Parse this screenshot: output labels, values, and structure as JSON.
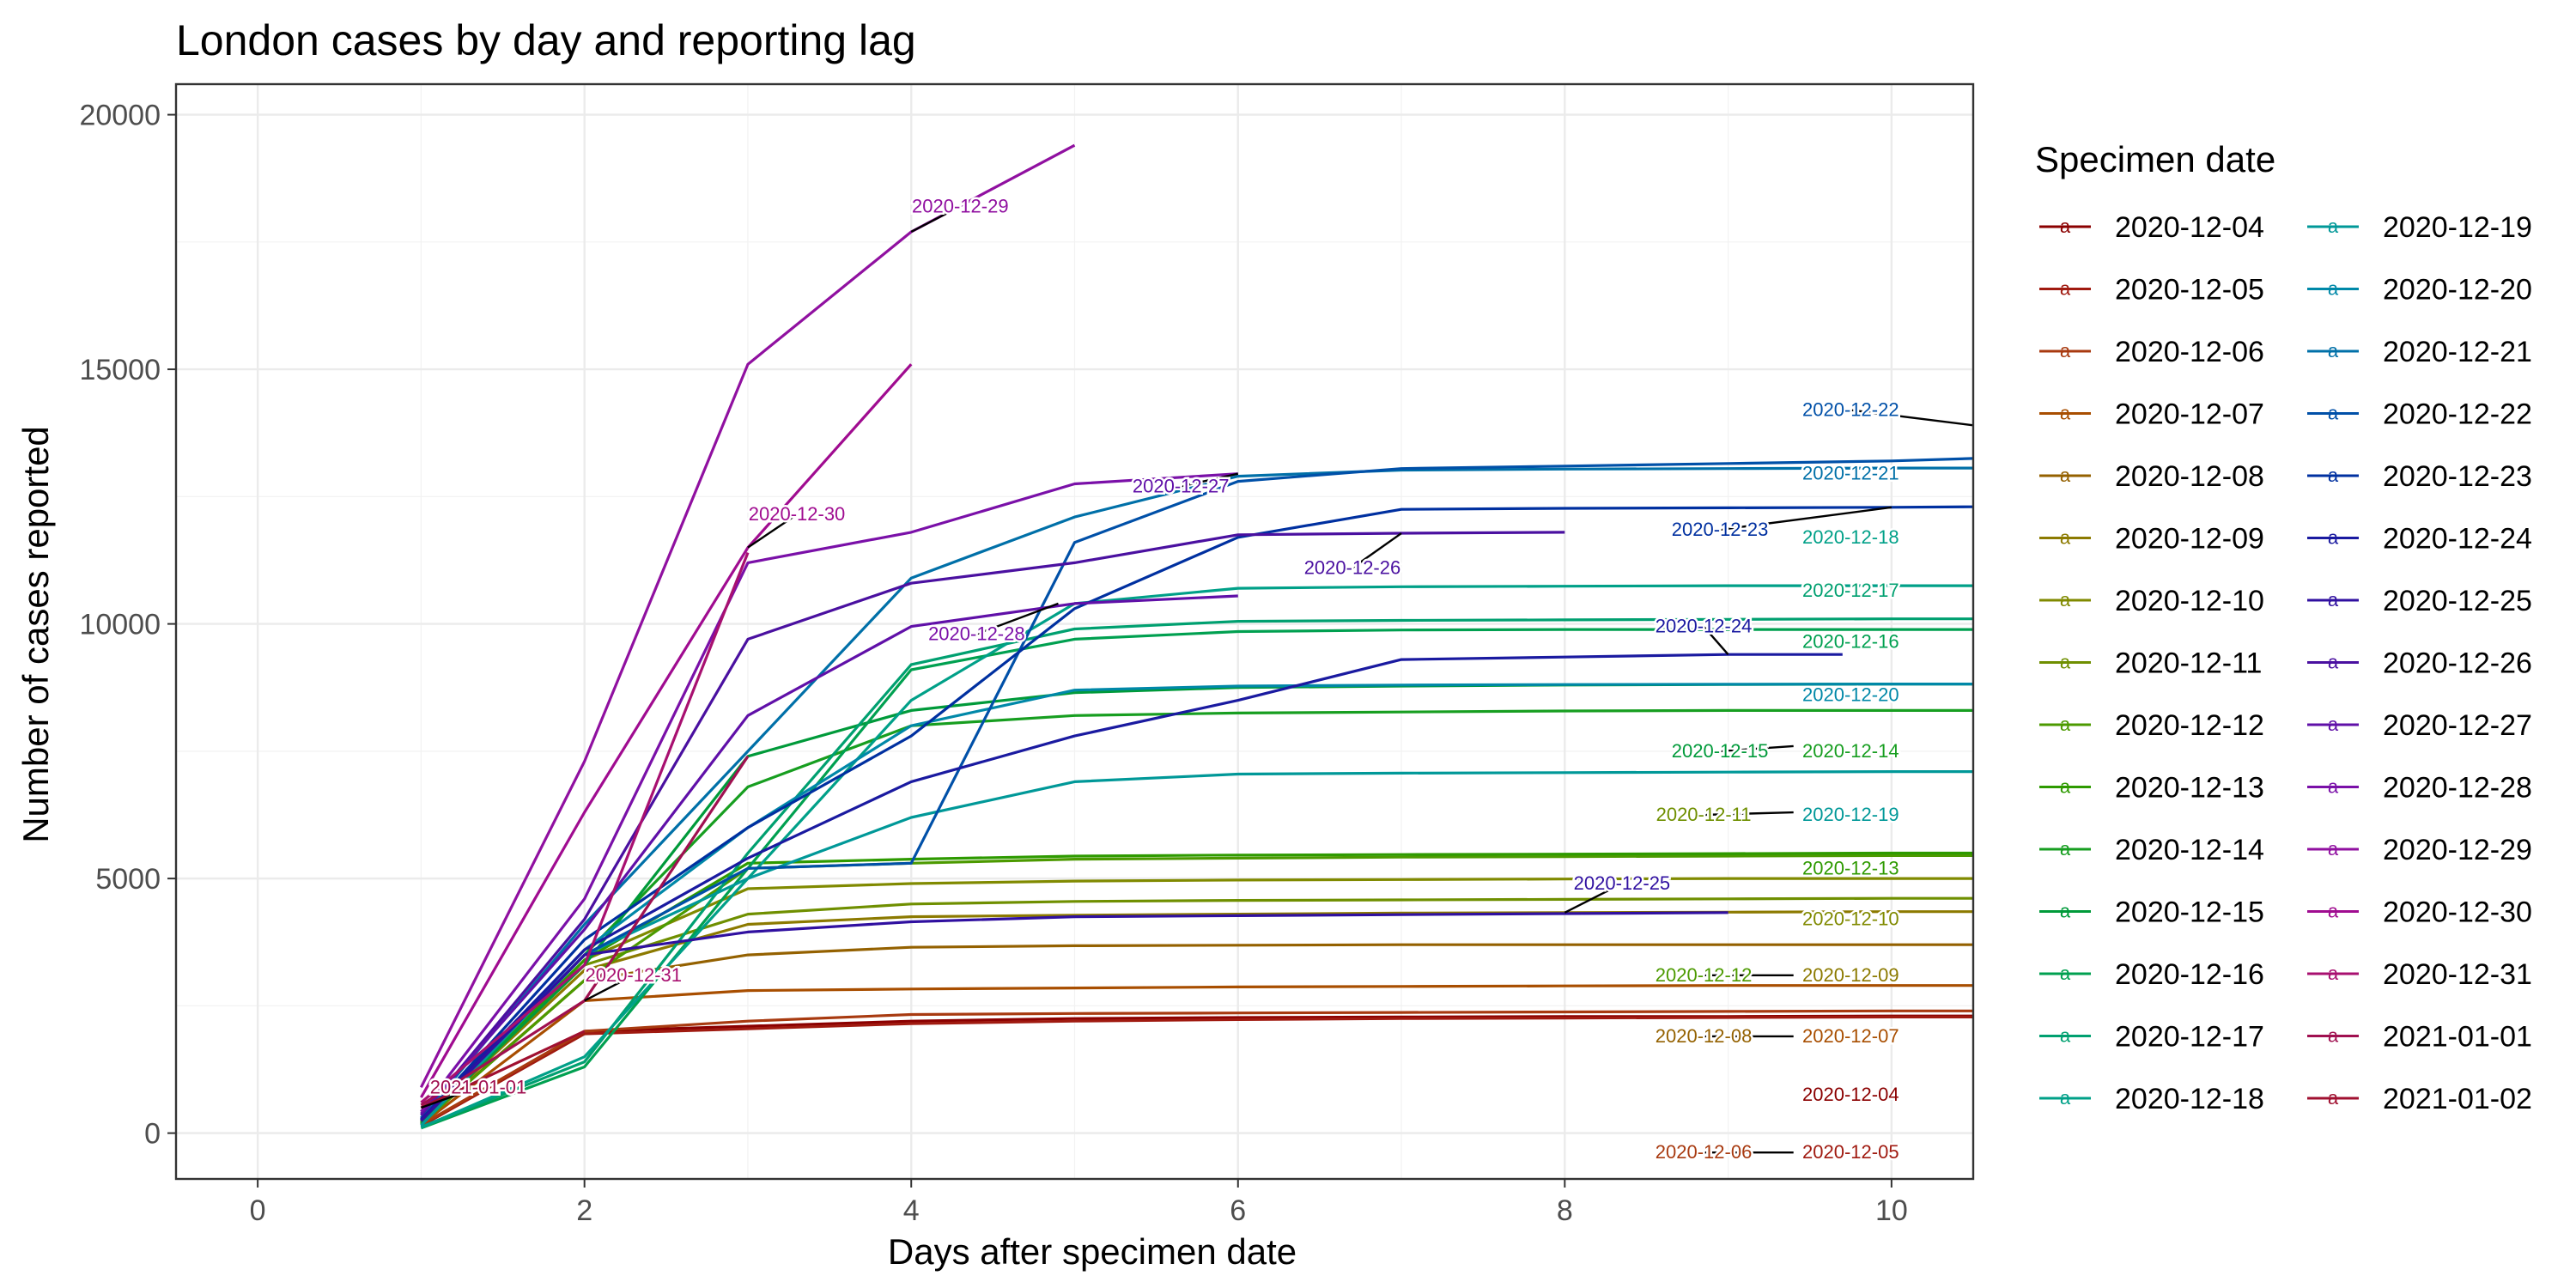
{
  "chart_data": {
    "type": "line",
    "title": "London cases by day and reporting lag",
    "xlabel": "Days after specimen date",
    "ylabel": "Number of cases reported",
    "xlim": [
      -0.5,
      10.5
    ],
    "ylim": [
      -900,
      20600
    ],
    "xticks": [
      0,
      2,
      4,
      6,
      8,
      10
    ],
    "yticks": [
      0,
      5000,
      10000,
      15000,
      20000
    ],
    "grid": true,
    "legend_title": "Specimen date",
    "legend_position": "right",
    "series": [
      {
        "name": "2020-12-04",
        "color": "#8B0000",
        "x": [
          1,
          2,
          3,
          4,
          5,
          6,
          7,
          8,
          9,
          10,
          10.5
        ],
        "y": [
          150,
          2000,
          2100,
          2200,
          2250,
          2270,
          2280,
          2290,
          2290,
          2300,
          2300
        ]
      },
      {
        "name": "2020-12-05",
        "color": "#A01A10",
        "x": [
          1,
          2,
          3,
          4,
          5,
          6,
          7,
          8,
          9,
          10,
          10.5
        ],
        "y": [
          140,
          1950,
          2050,
          2150,
          2200,
          2230,
          2250,
          2260,
          2270,
          2280,
          2280
        ]
      },
      {
        "name": "2020-12-06",
        "color": "#A83A10",
        "x": [
          1,
          2,
          3,
          4,
          5,
          6,
          7,
          8,
          9,
          10,
          10.5
        ],
        "y": [
          160,
          2000,
          2200,
          2330,
          2350,
          2360,
          2370,
          2380,
          2390,
          2400,
          2400
        ]
      },
      {
        "name": "2020-12-07",
        "color": "#A84E00",
        "x": [
          1,
          2,
          3,
          4,
          5,
          6,
          7,
          8,
          9,
          10,
          10.5
        ],
        "y": [
          170,
          2600,
          2800,
          2830,
          2850,
          2870,
          2880,
          2890,
          2900,
          2900,
          2900
        ]
      },
      {
        "name": "2020-12-08",
        "color": "#946100",
        "x": [
          1,
          2,
          3,
          4,
          5,
          6,
          7,
          8,
          9,
          10,
          10.5
        ],
        "y": [
          200,
          3000,
          3500,
          3650,
          3680,
          3690,
          3700,
          3700,
          3700,
          3700,
          3700
        ]
      },
      {
        "name": "2020-12-09",
        "color": "#8C7A00",
        "x": [
          1,
          2,
          3,
          4,
          5,
          6,
          7,
          8,
          9,
          10,
          10.5
        ],
        "y": [
          210,
          3200,
          4100,
          4250,
          4280,
          4300,
          4320,
          4330,
          4340,
          4350,
          4350
        ]
      },
      {
        "name": "2020-12-10",
        "color": "#808A00",
        "x": [
          1,
          2,
          3,
          4,
          5,
          6,
          7,
          8,
          9,
          10,
          10.5
        ],
        "y": [
          220,
          3400,
          4800,
          4900,
          4950,
          4970,
          4980,
          4990,
          5000,
          5000,
          5000
        ]
      },
      {
        "name": "2020-12-11",
        "color": "#6F8F00",
        "x": [
          1,
          2,
          3,
          4,
          5,
          6,
          7,
          8,
          9,
          10,
          10.5
        ],
        "y": [
          230,
          3300,
          4300,
          4500,
          4550,
          4570,
          4580,
          4590,
          4600,
          4610,
          4610
        ]
      },
      {
        "name": "2020-12-12",
        "color": "#4C9A00",
        "x": [
          1,
          2,
          3,
          4,
          5,
          6,
          7,
          8,
          9,
          10,
          10.5
        ],
        "y": [
          180,
          3000,
          5200,
          5300,
          5380,
          5400,
          5420,
          5430,
          5440,
          5450,
          5450
        ]
      },
      {
        "name": "2020-12-13",
        "color": "#2E9A00",
        "x": [
          1,
          2,
          3,
          4,
          5,
          6,
          7,
          8,
          9,
          10,
          10.5
        ],
        "y": [
          170,
          3400,
          5300,
          5380,
          5440,
          5460,
          5470,
          5480,
          5490,
          5500,
          5500
        ]
      },
      {
        "name": "2020-12-14",
        "color": "#179E20",
        "x": [
          1,
          2,
          3,
          4,
          5,
          6,
          7,
          8,
          9,
          10,
          10.5
        ],
        "y": [
          200,
          3500,
          6800,
          8000,
          8200,
          8250,
          8270,
          8290,
          8300,
          8300,
          8300
        ]
      },
      {
        "name": "2020-12-15",
        "color": "#009A3A",
        "x": [
          1,
          2,
          3,
          4,
          5,
          6,
          7,
          8,
          9,
          10,
          10.5
        ],
        "y": [
          190,
          3300,
          7400,
          8300,
          8650,
          8750,
          8780,
          8800,
          8810,
          8820,
          8820
        ]
      },
      {
        "name": "2020-12-16",
        "color": "#00A050",
        "x": [
          1,
          2,
          3,
          4,
          5,
          6,
          7,
          8,
          9,
          10,
          10.5
        ],
        "y": [
          100,
          1300,
          5200,
          9100,
          9700,
          9850,
          9880,
          9890,
          9890,
          9890,
          9890
        ]
      },
      {
        "name": "2020-12-17",
        "color": "#00A070",
        "x": [
          1,
          2,
          3,
          4,
          5,
          6,
          7,
          8,
          9,
          10,
          10.5
        ],
        "y": [
          120,
          1400,
          5500,
          9200,
          9900,
          10050,
          10070,
          10080,
          10090,
          10100,
          10100
        ]
      },
      {
        "name": "2020-12-18",
        "color": "#00A088",
        "x": [
          1,
          2,
          3,
          4,
          5,
          6,
          7,
          8,
          9,
          10,
          10.5
        ],
        "y": [
          110,
          1500,
          5000,
          8500,
          10400,
          10700,
          10730,
          10740,
          10750,
          10750,
          10750
        ]
      },
      {
        "name": "2020-12-19",
        "color": "#009898",
        "x": [
          1,
          2,
          3,
          4,
          5,
          6,
          7,
          8,
          9,
          10,
          10.5
        ],
        "y": [
          150,
          3500,
          5000,
          6200,
          6900,
          7050,
          7070,
          7080,
          7090,
          7100,
          7100
        ]
      },
      {
        "name": "2020-12-20",
        "color": "#0088A8",
        "x": [
          1,
          2,
          3,
          4,
          5,
          6,
          7,
          8,
          9,
          10,
          10.5
        ],
        "y": [
          250,
          3600,
          6000,
          8000,
          8700,
          8780,
          8800,
          8810,
          8815,
          8820,
          8820
        ]
      },
      {
        "name": "2020-12-21",
        "color": "#0070A8",
        "x": [
          1,
          2,
          3,
          4,
          5,
          6,
          7,
          8,
          9,
          10,
          10.5
        ],
        "y": [
          300,
          4100,
          7500,
          10900,
          12100,
          12900,
          13020,
          13040,
          13050,
          13060,
          13060
        ]
      },
      {
        "name": "2020-12-22",
        "color": "#0050A8",
        "x": [
          1,
          2,
          3,
          4,
          5,
          6,
          7,
          8,
          9,
          10,
          10.5
        ],
        "y": [
          280,
          3500,
          5200,
          5300,
          11600,
          12800,
          13050,
          13100,
          13150,
          13200,
          13250
        ]
      },
      {
        "name": "2020-12-23",
        "color": "#0030A0",
        "x": [
          1,
          2,
          3,
          4,
          5,
          6,
          7,
          8,
          9,
          10,
          10.5
        ],
        "y": [
          260,
          3800,
          6000,
          7800,
          10300,
          11700,
          12250,
          12270,
          12280,
          12290,
          12300
        ]
      },
      {
        "name": "2020-12-24",
        "color": "#1A1AA0",
        "x": [
          1,
          2,
          3,
          4,
          5,
          6,
          7,
          8,
          9,
          9.7
        ],
        "y": [
          270,
          3600,
          5400,
          6900,
          7800,
          8500,
          9300,
          9350,
          9400,
          9400
        ]
      },
      {
        "name": "2020-12-25",
        "color": "#3010A0",
        "x": [
          1,
          2,
          3,
          4,
          5,
          6,
          7,
          8,
          9
        ],
        "y": [
          240,
          3500,
          3950,
          4150,
          4250,
          4270,
          4290,
          4310,
          4330
        ]
      },
      {
        "name": "2020-12-26",
        "color": "#4A10A0",
        "x": [
          1,
          2,
          3,
          4,
          5,
          6,
          7,
          8
        ],
        "y": [
          350,
          4200,
          9700,
          10800,
          11200,
          11750,
          11780,
          11800
        ]
      },
      {
        "name": "2020-12-27",
        "color": "#6010A8",
        "x": [
          1,
          2,
          3,
          4,
          5,
          6
        ],
        "y": [
          380,
          4000,
          8200,
          9950,
          10400,
          10550
        ]
      },
      {
        "name": "2020-12-28",
        "color": "#7A10A8",
        "x": [
          1,
          2,
          3,
          4,
          5,
          6
        ],
        "y": [
          420,
          4600,
          11200,
          11800,
          12750,
          12950
        ]
      },
      {
        "name": "2020-12-29",
        "color": "#9010A0",
        "x": [
          1,
          2,
          3,
          4,
          5
        ],
        "y": [
          900,
          7300,
          15100,
          17700,
          19400
        ]
      },
      {
        "name": "2020-12-30",
        "color": "#A00C90",
        "x": [
          1,
          2,
          3,
          4
        ],
        "y": [
          700,
          6300,
          11500,
          15100
        ]
      },
      {
        "name": "2020-12-31",
        "color": "#A81070",
        "x": [
          1,
          2,
          3
        ],
        "y": [
          600,
          3300,
          11400
        ]
      },
      {
        "name": "2021-01-01",
        "color": "#A01050",
        "x": [
          1,
          2,
          3
        ],
        "y": [
          550,
          2600,
          7400
        ]
      },
      {
        "name": "2021-01-02",
        "color": "#A01030",
        "x": [
          1,
          2
        ],
        "y": [
          500,
          2000
        ]
      }
    ],
    "annotations": [
      {
        "text": "2020-12-29",
        "x": 4.3,
        "y": 18200,
        "color": "#9010A0",
        "ax": 4.0,
        "ay": 17700
      },
      {
        "text": "2020-12-30",
        "x": 3.3,
        "y": 12150,
        "color": "#A00C90",
        "ax": 3.0,
        "ay": 11500
      },
      {
        "text": "2020-12-27",
        "x": 5.65,
        "y": 12700,
        "color": "#6010A8",
        "ax": 6.0,
        "ay": 12950
      },
      {
        "text": "2020-12-26",
        "x": 6.7,
        "y": 11100,
        "color": "#4A10A0",
        "ax": 7.0,
        "ay": 11780
      },
      {
        "text": "2020-12-28",
        "x": 4.4,
        "y": 9800,
        "color": "#7A10A8",
        "ax": 4.9,
        "ay": 10400
      },
      {
        "text": "2020-12-22",
        "x": 9.75,
        "y": 14200,
        "color": "#0050A8",
        "ax": 10.5,
        "ay": 13900
      },
      {
        "text": "2020-12-21",
        "x": 9.75,
        "y": 12950,
        "color": "#0070A8"
      },
      {
        "text": "2020-12-23",
        "x": 8.95,
        "y": 11850,
        "color": "#0030A0",
        "ax": 10.0,
        "ay": 12290
      },
      {
        "text": "2020-12-18",
        "x": 9.75,
        "y": 11700,
        "color": "#00A088"
      },
      {
        "text": "2020-12-17",
        "x": 9.75,
        "y": 10650,
        "color": "#00A070"
      },
      {
        "text": "2020-12-24",
        "x": 8.85,
        "y": 9950,
        "color": "#1A1AA0",
        "ax": 9.0,
        "ay": 9400
      },
      {
        "text": "2020-12-16",
        "x": 9.75,
        "y": 9650,
        "color": "#00A050"
      },
      {
        "text": "2020-12-20",
        "x": 9.75,
        "y": 8600,
        "color": "#0088A8"
      },
      {
        "text": "2020-12-15",
        "x": 8.95,
        "y": 7500,
        "color": "#009A3A",
        "ax": 9.4,
        "ay": 7600
      },
      {
        "text": "2020-12-14",
        "x": 9.75,
        "y": 7500,
        "color": "#179E20"
      },
      {
        "text": "2020-12-11",
        "x": 8.85,
        "y": 6250,
        "color": "#6F8F00",
        "ax": 9.4,
        "ay": 6300
      },
      {
        "text": "2020-12-19",
        "x": 9.75,
        "y": 6250,
        "color": "#009898"
      },
      {
        "text": "2020-12-13",
        "x": 9.75,
        "y": 5200,
        "color": "#2E9A00"
      },
      {
        "text": "2020-12-25",
        "x": 8.35,
        "y": 4900,
        "color": "#3010A0",
        "ax": 8.0,
        "ay": 4330
      },
      {
        "text": "2020-12-10",
        "x": 9.75,
        "y": 4200,
        "color": "#808A00"
      },
      {
        "text": "2020-12-12",
        "x": 8.85,
        "y": 3100,
        "color": "#4C9A00",
        "ax": 9.4,
        "ay": 3100
      },
      {
        "text": "2020-12-09",
        "x": 9.75,
        "y": 3100,
        "color": "#8C7A00"
      },
      {
        "text": "2020-12-08",
        "x": 8.85,
        "y": 1900,
        "color": "#946100",
        "ax": 9.4,
        "ay": 1900
      },
      {
        "text": "2020-12-07",
        "x": 9.75,
        "y": 1900,
        "color": "#A84E00"
      },
      {
        "text": "2020-12-04",
        "x": 9.75,
        "y": 750,
        "color": "#8B0000"
      },
      {
        "text": "2020-12-06",
        "x": 8.85,
        "y": -380,
        "color": "#A83A10",
        "ax": 9.4,
        "ay": -380
      },
      {
        "text": "2020-12-05",
        "x": 9.75,
        "y": -380,
        "color": "#A01A10"
      },
      {
        "text": "2020-12-31",
        "x": 2.3,
        "y": 3100,
        "color": "#A81070",
        "ax": 2.0,
        "ay": 2600
      },
      {
        "text": "2021-01-01",
        "x": 1.35,
        "y": 900,
        "color": "#A01050",
        "ax": 1.0,
        "ay": 500
      }
    ]
  }
}
